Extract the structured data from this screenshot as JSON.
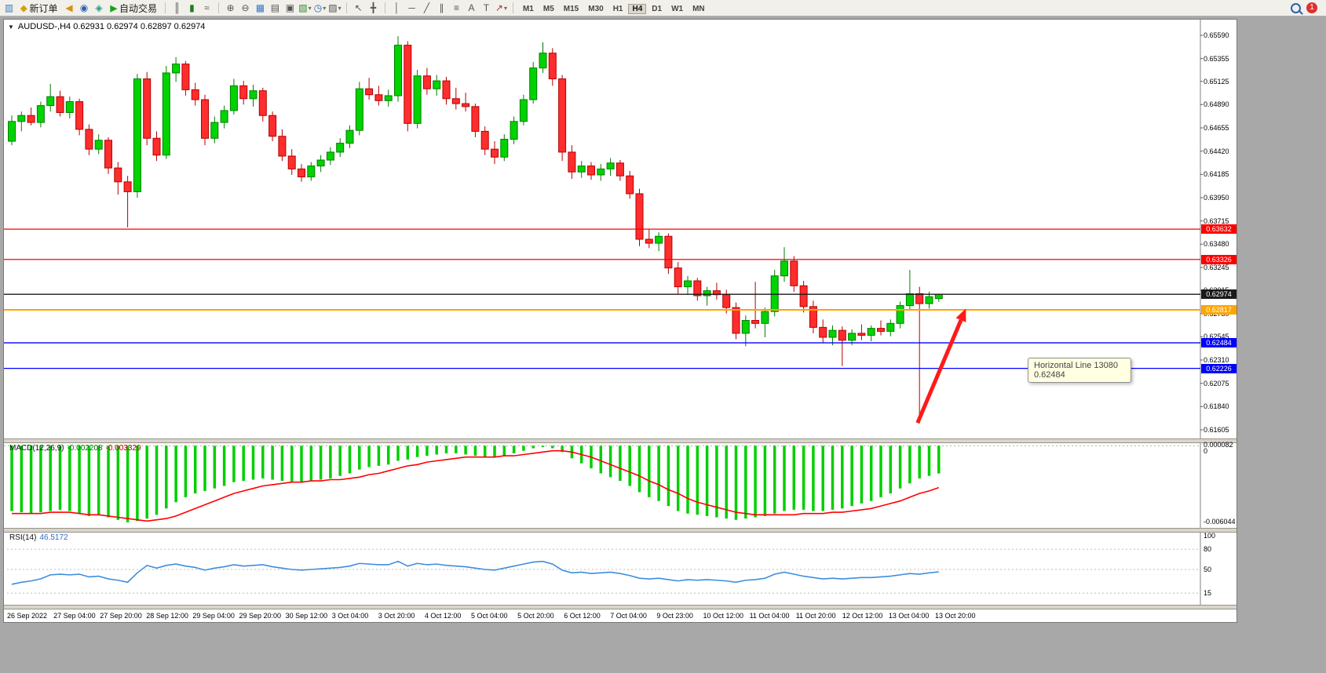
{
  "app": {
    "notification_count": "1"
  },
  "toolbar": {
    "new_order_label": "新订单",
    "auto_trading_label": "自动交易",
    "timeframes": [
      "M1",
      "M5",
      "M15",
      "M30",
      "H1",
      "H4",
      "D1",
      "W1",
      "MN"
    ],
    "active_timeframe": "H4"
  },
  "icon_glyphs": {
    "chart": "▥",
    "new-order": "◆",
    "sound": "◀",
    "community": "◉",
    "market": "◈",
    "autotrade": "▶",
    "bars": "║",
    "candles": "▮",
    "line-chart": "≈",
    "zoom-in": "⊕",
    "zoom-out": "⊖",
    "tile": "▦",
    "arrange": "▤",
    "cascade": "▣",
    "new-chart": "▧",
    "clock": "◷",
    "template": "▨",
    "cursor": "↖",
    "crosshair": "╋",
    "vline": "│",
    "hline": "─",
    "trendline": "╱",
    "channel": "∥",
    "fibonacci": "≡",
    "text": "A",
    "label": "T",
    "arrow-tool": "↗",
    "dropdown": "▾"
  },
  "chart": {
    "title": "AUDUSD-,H4 0.62931 0.62974 0.62897 0.62974",
    "tooltip_line1": "Horizontal Line 13080",
    "tooltip_line2": "0.62484"
  },
  "chart_data": {
    "type": "candlestick",
    "symbol": "AUDUSD-",
    "timeframe": "H4",
    "ohlc": {
      "open": 0.62931,
      "high": 0.62974,
      "low": 0.62897,
      "close": 0.62974
    },
    "price_axis": {
      "max": 0.6559,
      "min": 0.61605,
      "ticks": [
        {
          "p": 0.6559,
          "t": "0.65590"
        },
        {
          "p": 0.65355,
          "t": "0.65355"
        },
        {
          "p": 0.65125,
          "t": "0.65125"
        },
        {
          "p": 0.6489,
          "t": "0.64890"
        },
        {
          "p": 0.64655,
          "t": "0.64655"
        },
        {
          "p": 0.6442,
          "t": "0.64420"
        },
        {
          "p": 0.64185,
          "t": "0.64185"
        },
        {
          "p": 0.6395,
          "t": "0.63950"
        },
        {
          "p": 0.63715,
          "t": "0.63715"
        },
        {
          "p": 0.6348,
          "t": "0.63480"
        },
        {
          "p": 0.63245,
          "t": "0.63245"
        },
        {
          "p": 0.63015,
          "t": "0.63015"
        },
        {
          "p": 0.6278,
          "t": "0.62780"
        },
        {
          "p": 0.62545,
          "t": "0.62545"
        },
        {
          "p": 0.6231,
          "t": "0.62310"
        },
        {
          "p": 0.62075,
          "t": "0.62075"
        },
        {
          "p": 0.6184,
          "t": "0.61840"
        },
        {
          "p": 0.61605,
          "t": "0.61605"
        }
      ]
    },
    "hlines": [
      {
        "price": 0.63632,
        "color": "#FF0000",
        "badge": "0.63632",
        "name": "resistance-line-1"
      },
      {
        "price": 0.63326,
        "color": "#FF0000",
        "badge": "0.63326",
        "name": "resistance-line-2"
      },
      {
        "price": 0.62974,
        "color": "#1a1a1a",
        "badge": "0.62974",
        "name": "current-price-line"
      },
      {
        "price": 0.62817,
        "color": "#FFA500",
        "badge": "0.62817",
        "name": "orange-level-line"
      },
      {
        "price": 0.62484,
        "color": "#0000FF",
        "badge": "0.62484",
        "name": "support-line-1"
      },
      {
        "price": 0.62226,
        "color": "#0000FF",
        "badge": "0.62226",
        "name": "support-line-2"
      }
    ],
    "colors": {
      "bull": "#00D300",
      "bull_border": "#007E00",
      "bear": "#FF2D2D",
      "bear_border": "#B40000",
      "macd_hist": "#00CF00",
      "macd_signal": "#FF0000",
      "rsi_line": "#3E8EDE",
      "arrow": "#FF1A1A"
    },
    "candles": [
      [
        0.6452,
        0.6478,
        0.6448,
        0.6472
      ],
      [
        0.6472,
        0.6482,
        0.6462,
        0.6478
      ],
      [
        0.6478,
        0.6486,
        0.6468,
        0.6471
      ],
      [
        0.6471,
        0.6492,
        0.6466,
        0.6488
      ],
      [
        0.6488,
        0.651,
        0.6482,
        0.6497
      ],
      [
        0.6497,
        0.6503,
        0.6477,
        0.6481
      ],
      [
        0.6481,
        0.6497,
        0.6475,
        0.6492
      ],
      [
        0.6492,
        0.6495,
        0.6458,
        0.6464
      ],
      [
        0.6464,
        0.6469,
        0.6438,
        0.6444
      ],
      [
        0.6444,
        0.6459,
        0.6439,
        0.6453
      ],
      [
        0.6453,
        0.6456,
        0.6419,
        0.6425
      ],
      [
        0.6425,
        0.6431,
        0.6398,
        0.6411
      ],
      [
        0.6411,
        0.6417,
        0.6365,
        0.6401
      ],
      [
        0.6401,
        0.652,
        0.6395,
        0.6515
      ],
      [
        0.6515,
        0.6522,
        0.6448,
        0.6455
      ],
      [
        0.6455,
        0.6462,
        0.6432,
        0.6438
      ],
      [
        0.6438,
        0.6528,
        0.6434,
        0.6521
      ],
      [
        0.6521,
        0.6537,
        0.6512,
        0.653
      ],
      [
        0.653,
        0.6533,
        0.6498,
        0.6504
      ],
      [
        0.6504,
        0.6511,
        0.6488,
        0.6494
      ],
      [
        0.6494,
        0.6499,
        0.6448,
        0.6455
      ],
      [
        0.6455,
        0.6477,
        0.645,
        0.6471
      ],
      [
        0.6471,
        0.6488,
        0.6465,
        0.6483
      ],
      [
        0.6483,
        0.6515,
        0.6479,
        0.6508
      ],
      [
        0.6508,
        0.6513,
        0.6489,
        0.6495
      ],
      [
        0.6495,
        0.6509,
        0.6487,
        0.6503
      ],
      [
        0.6503,
        0.6506,
        0.6472,
        0.6478
      ],
      [
        0.6478,
        0.6482,
        0.6452,
        0.6457
      ],
      [
        0.6457,
        0.6464,
        0.6432,
        0.6437
      ],
      [
        0.6437,
        0.6444,
        0.6418,
        0.6424
      ],
      [
        0.6424,
        0.6429,
        0.6411,
        0.6416
      ],
      [
        0.6416,
        0.6431,
        0.6412,
        0.6427
      ],
      [
        0.6427,
        0.6438,
        0.6421,
        0.6433
      ],
      [
        0.6433,
        0.6446,
        0.6428,
        0.6441
      ],
      [
        0.6441,
        0.6455,
        0.6436,
        0.645
      ],
      [
        0.645,
        0.6468,
        0.6445,
        0.6463
      ],
      [
        0.6463,
        0.6512,
        0.6458,
        0.6505
      ],
      [
        0.6505,
        0.6516,
        0.6494,
        0.6499
      ],
      [
        0.6499,
        0.6508,
        0.6488,
        0.6493
      ],
      [
        0.6493,
        0.6504,
        0.6487,
        0.6498
      ],
      [
        0.6498,
        0.6558,
        0.6492,
        0.6549
      ],
      [
        0.6549,
        0.6553,
        0.6462,
        0.647
      ],
      [
        0.647,
        0.6524,
        0.6465,
        0.6518
      ],
      [
        0.6518,
        0.6526,
        0.6499,
        0.6505
      ],
      [
        0.6505,
        0.6519,
        0.6498,
        0.6513
      ],
      [
        0.6513,
        0.6517,
        0.6489,
        0.6495
      ],
      [
        0.6495,
        0.6506,
        0.6484,
        0.649
      ],
      [
        0.649,
        0.6501,
        0.6482,
        0.6487
      ],
      [
        0.6487,
        0.649,
        0.6456,
        0.6462
      ],
      [
        0.6462,
        0.6467,
        0.6438,
        0.6444
      ],
      [
        0.6444,
        0.6452,
        0.6429,
        0.6436
      ],
      [
        0.6436,
        0.6459,
        0.6432,
        0.6454
      ],
      [
        0.6454,
        0.6477,
        0.6449,
        0.6472
      ],
      [
        0.6472,
        0.6499,
        0.6468,
        0.6494
      ],
      [
        0.6494,
        0.6532,
        0.649,
        0.6526
      ],
      [
        0.6526,
        0.6552,
        0.6521,
        0.6541
      ],
      [
        0.6541,
        0.6546,
        0.6508,
        0.6515
      ],
      [
        0.6515,
        0.6519,
        0.6432,
        0.6441
      ],
      [
        0.6441,
        0.6448,
        0.6414,
        0.6421
      ],
      [
        0.6421,
        0.6432,
        0.6415,
        0.6427
      ],
      [
        0.6427,
        0.6431,
        0.6413,
        0.6418
      ],
      [
        0.6418,
        0.6429,
        0.6412,
        0.6424
      ],
      [
        0.6424,
        0.6435,
        0.6417,
        0.643
      ],
      [
        0.643,
        0.6433,
        0.6412,
        0.6417
      ],
      [
        0.6417,
        0.6422,
        0.6394,
        0.6399
      ],
      [
        0.6399,
        0.6404,
        0.6346,
        0.6353
      ],
      [
        0.6353,
        0.6363,
        0.6344,
        0.6349
      ],
      [
        0.6349,
        0.636,
        0.6341,
        0.6356
      ],
      [
        0.6356,
        0.6359,
        0.6318,
        0.6324
      ],
      [
        0.6324,
        0.633,
        0.6298,
        0.6305
      ],
      [
        0.6305,
        0.6316,
        0.6297,
        0.6311
      ],
      [
        0.6311,
        0.6314,
        0.6291,
        0.6296
      ],
      [
        0.6296,
        0.6305,
        0.6286,
        0.6301
      ],
      [
        0.6301,
        0.6309,
        0.6292,
        0.6297
      ],
      [
        0.6297,
        0.6302,
        0.6278,
        0.6284
      ],
      [
        0.6284,
        0.6289,
        0.6252,
        0.6258
      ],
      [
        0.6258,
        0.6276,
        0.6245,
        0.6271
      ],
      [
        0.6271,
        0.631,
        0.6263,
        0.6268
      ],
      [
        0.6268,
        0.6284,
        0.6254,
        0.628
      ],
      [
        0.628,
        0.6322,
        0.6275,
        0.6316
      ],
      [
        0.6316,
        0.6345,
        0.631,
        0.6331
      ],
      [
        0.6331,
        0.6336,
        0.63,
        0.6306
      ],
      [
        0.6306,
        0.6311,
        0.6279,
        0.6285
      ],
      [
        0.6285,
        0.6291,
        0.6258,
        0.6264
      ],
      [
        0.6264,
        0.6272,
        0.6248,
        0.6254
      ],
      [
        0.6254,
        0.6266,
        0.6246,
        0.6261
      ],
      [
        0.6261,
        0.6265,
        0.6225,
        0.6251
      ],
      [
        0.6251,
        0.6262,
        0.6246,
        0.6258
      ],
      [
        0.6258,
        0.6267,
        0.6251,
        0.6256
      ],
      [
        0.6256,
        0.6266,
        0.625,
        0.6263
      ],
      [
        0.6263,
        0.6271,
        0.6256,
        0.626
      ],
      [
        0.626,
        0.6272,
        0.6255,
        0.6268
      ],
      [
        0.6268,
        0.629,
        0.6263,
        0.6286
      ],
      [
        0.6286,
        0.6322,
        0.6281,
        0.6298
      ],
      [
        0.6298,
        0.6305,
        0.6167,
        0.6288
      ],
      [
        0.6288,
        0.63,
        0.6283,
        0.6295
      ],
      [
        0.62931,
        0.62974,
        0.62897,
        0.62974
      ]
    ],
    "macd": {
      "label": "MACD(12,26,9)",
      "main_value": "-0.002208",
      "signal_value": "-0.003329",
      "axis_max": 8.2e-05,
      "axis_min": -0.006044,
      "axis_ticks": [
        {
          "v": 8.2e-05,
          "t": "0.000082"
        },
        {
          "v": 0,
          "t": "0"
        },
        {
          "v": -0.006044,
          "t": "-0.006044"
        }
      ],
      "histogram": [
        -0.0052,
        -0.0053,
        -0.0054,
        -0.0053,
        -0.0052,
        -0.0051,
        -0.0052,
        -0.0054,
        -0.0056,
        -0.0055,
        -0.0057,
        -0.0059,
        -0.0061,
        -0.006,
        -0.0058,
        -0.0055,
        -0.005,
        -0.0045,
        -0.0041,
        -0.0038,
        -0.0036,
        -0.0034,
        -0.0032,
        -0.0029,
        -0.0028,
        -0.0027,
        -0.0026,
        -0.0027,
        -0.0028,
        -0.0029,
        -0.0029,
        -0.0028,
        -0.0027,
        -0.0026,
        -0.0024,
        -0.0022,
        -0.0019,
        -0.0017,
        -0.0016,
        -0.0015,
        -0.0012,
        -0.0011,
        -0.0009,
        -0.0008,
        -0.0007,
        -0.0006,
        -0.0006,
        -0.0007,
        -0.0008,
        -0.0009,
        -0.0009,
        -0.0008,
        -0.0006,
        -0.0004,
        -0.0002,
        -0.0001,
        -0.0002,
        -0.0005,
        -0.001,
        -0.0014,
        -0.0018,
        -0.0022,
        -0.0025,
        -0.0028,
        -0.0032,
        -0.0037,
        -0.0041,
        -0.0044,
        -0.0048,
        -0.0052,
        -0.0054,
        -0.0055,
        -0.0056,
        -0.0057,
        -0.0058,
        -0.0059,
        -0.0058,
        -0.0057,
        -0.0056,
        -0.0054,
        -0.0052,
        -0.0051,
        -0.0051,
        -0.0052,
        -0.0052,
        -0.0051,
        -0.005,
        -0.0048,
        -0.0046,
        -0.0044,
        -0.0041,
        -0.0038,
        -0.0034,
        -0.003,
        -0.0026,
        -0.0024,
        -0.002208
      ],
      "signal": [
        -0.0054,
        -0.0054,
        -0.0054,
        -0.0054,
        -0.0053,
        -0.0053,
        -0.0053,
        -0.0054,
        -0.0055,
        -0.0055,
        -0.0056,
        -0.0057,
        -0.0058,
        -0.0059,
        -0.006,
        -0.0059,
        -0.0058,
        -0.0056,
        -0.0053,
        -0.005,
        -0.0047,
        -0.0044,
        -0.0041,
        -0.0038,
        -0.0036,
        -0.0034,
        -0.0032,
        -0.0031,
        -0.003,
        -0.0029,
        -0.0029,
        -0.0028,
        -0.0028,
        -0.0027,
        -0.0027,
        -0.0026,
        -0.0025,
        -0.0023,
        -0.0022,
        -0.002,
        -0.0018,
        -0.0016,
        -0.0015,
        -0.0013,
        -0.0012,
        -0.0011,
        -0.001,
        -0.0009,
        -0.0009,
        -0.0009,
        -0.0009,
        -0.0008,
        -0.0008,
        -0.0007,
        -0.0006,
        -0.0005,
        -0.0004,
        -0.0004,
        -0.0005,
        -0.0007,
        -0.0009,
        -0.0012,
        -0.0015,
        -0.0018,
        -0.0021,
        -0.0024,
        -0.0028,
        -0.0031,
        -0.0035,
        -0.0038,
        -0.0042,
        -0.0045,
        -0.0047,
        -0.0049,
        -0.0051,
        -0.0053,
        -0.0054,
        -0.0055,
        -0.0055,
        -0.0055,
        -0.0055,
        -0.0055,
        -0.0054,
        -0.0054,
        -0.0054,
        -0.0053,
        -0.0053,
        -0.0052,
        -0.0051,
        -0.005,
        -0.0048,
        -0.0046,
        -0.0044,
        -0.0041,
        -0.0038,
        -0.0036,
        -0.003329
      ]
    },
    "rsi": {
      "label": "RSI(14)",
      "value": "46.5172",
      "levels": [
        80,
        50,
        15
      ],
      "axis_ticks": [
        {
          "v": 100,
          "t": "100"
        },
        {
          "v": 80,
          "t": "80"
        },
        {
          "v": 50,
          "t": "50"
        },
        {
          "v": 15,
          "t": "15"
        }
      ],
      "values": [
        28,
        31,
        33,
        36,
        42,
        43,
        42,
        43,
        39,
        40,
        36,
        34,
        31,
        45,
        56,
        52,
        56,
        58,
        55,
        53,
        49,
        52,
        54,
        57,
        55,
        56,
        57,
        54,
        52,
        50,
        49,
        50,
        51,
        52,
        53,
        55,
        59,
        58,
        57,
        57,
        62,
        55,
        59,
        57,
        58,
        56,
        55,
        54,
        52,
        50,
        49,
        52,
        55,
        58,
        61,
        62,
        58,
        49,
        45,
        46,
        44,
        45,
        46,
        44,
        41,
        37,
        36,
        37,
        35,
        33,
        35,
        34,
        35,
        34,
        33,
        31,
        34,
        35,
        37,
        43,
        46,
        43,
        40,
        38,
        36,
        37,
        36,
        37,
        38,
        38,
        39,
        40,
        42,
        44,
        43,
        45,
        46.5172
      ]
    },
    "time_labels": [
      "26 Sep 2022",
      "27 Sep 04:00",
      "27 Sep 20:00",
      "28 Sep 12:00",
      "29 Sep 04:00",
      "29 Sep 20:00",
      "30 Sep 12:00",
      "3 Oct 04:00",
      "3 Oct 20:00",
      "4 Oct 12:00",
      "5 Oct 04:00",
      "5 Oct 20:00",
      "6 Oct 12:00",
      "7 Oct 04:00",
      "9 Oct 23:00",
      "10 Oct 12:00",
      "11 Oct 04:00",
      "11 Oct 20:00",
      "12 Oct 12:00",
      "13 Oct 04:00",
      "13 Oct 20:00"
    ],
    "arrow": {
      "from": {
        "i": 93.8,
        "price": 0.61675
      },
      "to": {
        "i": 98.8,
        "price": 0.6283
      }
    }
  }
}
